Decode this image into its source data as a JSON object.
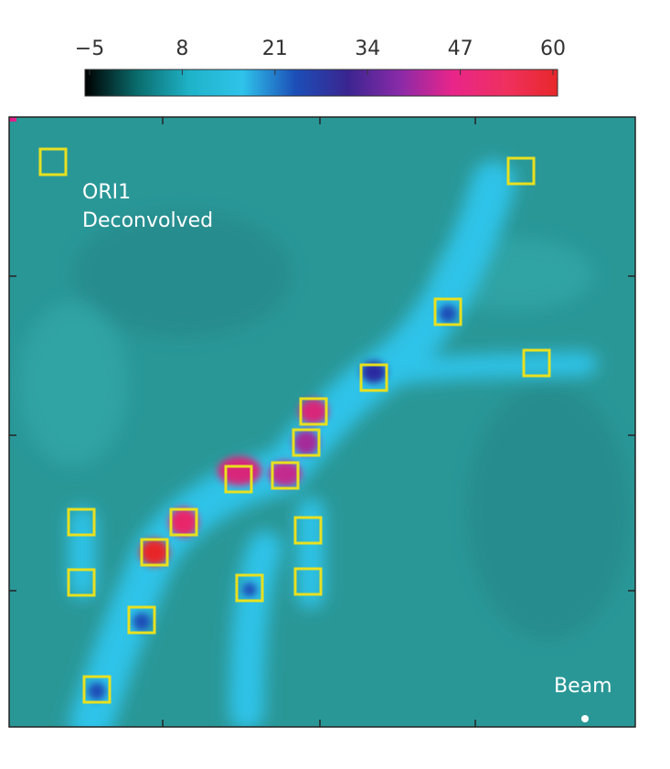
{
  "colorbar": {
    "range": [
      -5,
      60
    ],
    "ticks": [
      -5,
      8,
      21,
      34,
      47,
      60
    ],
    "colors": [
      "#000000",
      "#0a6d6d",
      "#1fb3c9",
      "#2fc3ea",
      "#1c4fb8",
      "#3a2590",
      "#8a2aa8",
      "#e8258a",
      "#ef3060",
      "#e8282a"
    ]
  },
  "image": {
    "title_lines": [
      "ORI1",
      "Deconvolved"
    ],
    "beam_label": "Beam"
  }
}
